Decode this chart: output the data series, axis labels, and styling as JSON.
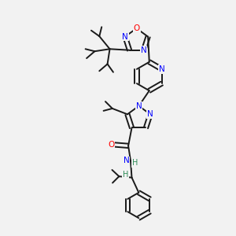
{
  "bg_color": "#f2f2f2",
  "bond_color": "#1a1a1a",
  "N_color": "#0000ff",
  "O_color": "#ff0000",
  "H_color": "#2e8b57",
  "line_width": 1.4,
  "dbo": 0.12,
  "figsize": [
    3.0,
    3.0
  ],
  "dpi": 100,
  "xlim": [
    0,
    10
  ],
  "ylim": [
    0,
    10
  ]
}
